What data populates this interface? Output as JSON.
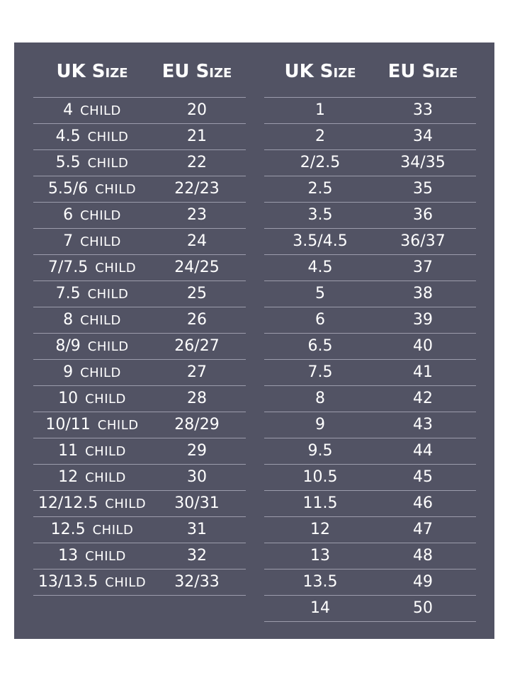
{
  "headers": {
    "uk": "UK Size",
    "eu": "EU Size"
  },
  "child_label": "CHILD",
  "colors": {
    "panel": "#525364",
    "text": "#ffffff",
    "divider": "#9c9cac"
  },
  "left_table": [
    {
      "uk": "4",
      "eu": "20"
    },
    {
      "uk": "4.5",
      "eu": "21"
    },
    {
      "uk": "5.5",
      "eu": "22"
    },
    {
      "uk": "5.5/6",
      "eu": "22/23"
    },
    {
      "uk": "6",
      "eu": "23"
    },
    {
      "uk": "7",
      "eu": "24"
    },
    {
      "uk": "7/7.5",
      "eu": "24/25"
    },
    {
      "uk": "7.5",
      "eu": "25"
    },
    {
      "uk": "8",
      "eu": "26"
    },
    {
      "uk": "8/9",
      "eu": "26/27"
    },
    {
      "uk": "9",
      "eu": "27"
    },
    {
      "uk": "10",
      "eu": "28"
    },
    {
      "uk": "10/11",
      "eu": "28/29"
    },
    {
      "uk": "11",
      "eu": "29"
    },
    {
      "uk": "12",
      "eu": "30"
    },
    {
      "uk": "12/12.5",
      "eu": "30/31"
    },
    {
      "uk": "12.5",
      "eu": "31"
    },
    {
      "uk": "13",
      "eu": "32"
    },
    {
      "uk": "13/13.5",
      "eu": "32/33"
    }
  ],
  "right_table": [
    {
      "uk": "1",
      "eu": "33"
    },
    {
      "uk": "2",
      "eu": "34"
    },
    {
      "uk": "2/2.5",
      "eu": "34/35"
    },
    {
      "uk": "2.5",
      "eu": "35"
    },
    {
      "uk": "3.5",
      "eu": "36"
    },
    {
      "uk": "3.5/4.5",
      "eu": "36/37"
    },
    {
      "uk": "4.5",
      "eu": "37"
    },
    {
      "uk": "5",
      "eu": "38"
    },
    {
      "uk": "6",
      "eu": "39"
    },
    {
      "uk": "6.5",
      "eu": "40"
    },
    {
      "uk": "7.5",
      "eu": "41"
    },
    {
      "uk": "8",
      "eu": "42"
    },
    {
      "uk": "9",
      "eu": "43"
    },
    {
      "uk": "9.5",
      "eu": "44"
    },
    {
      "uk": "10.5",
      "eu": "45"
    },
    {
      "uk": "11.5",
      "eu": "46"
    },
    {
      "uk": "12",
      "eu": "47"
    },
    {
      "uk": "13",
      "eu": "48"
    },
    {
      "uk": "13.5",
      "eu": "49"
    },
    {
      "uk": "14",
      "eu": "50"
    }
  ]
}
